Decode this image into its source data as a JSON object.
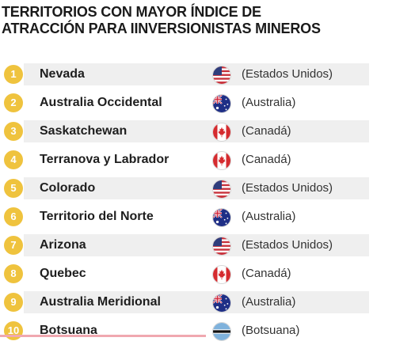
{
  "title": {
    "line1": "TERRITORIOS CON MAYOR ÍNDICE DE",
    "line2": "ATRACCIÓN PARA IINVERSIONISTAS MINEROS"
  },
  "colors": {
    "number_badge": "#efc33e",
    "band": "#efefef",
    "accent_rule": "#f0a8b0"
  },
  "rows": [
    {
      "rank": "1",
      "territory": "Nevada",
      "country": "(Estados Unidos)",
      "flag": "usa-flag-icon"
    },
    {
      "rank": "2",
      "territory": "Australia Occidental",
      "country": "(Australia)",
      "flag": "australia-flag-icon"
    },
    {
      "rank": "3",
      "territory": "Saskatchewan",
      "country": "(Canadá)",
      "flag": "canada-flag-icon"
    },
    {
      "rank": "4",
      "territory": "Terranova y Labrador",
      "country": "(Canadá)",
      "flag": "canada-flag-icon"
    },
    {
      "rank": "5",
      "territory": "Colorado",
      "country": "(Estados Unidos)",
      "flag": "usa-flag-icon"
    },
    {
      "rank": "6",
      "territory": "Territorio del Norte",
      "country": "(Australia)",
      "flag": "australia-flag-icon"
    },
    {
      "rank": "7",
      "territory": "Arizona",
      "country": "(Estados Unidos)",
      "flag": "usa-flag-icon"
    },
    {
      "rank": "8",
      "territory": "Quebec",
      "country": "(Canadá)",
      "flag": "canada-flag-icon"
    },
    {
      "rank": "9",
      "territory": "Australia Meridional",
      "country": "(Australia)",
      "flag": "australia-flag-icon"
    },
    {
      "rank": "10",
      "territory": "Botsuana",
      "country": "(Botsuana)",
      "flag": "botswana-flag-icon"
    }
  ]
}
